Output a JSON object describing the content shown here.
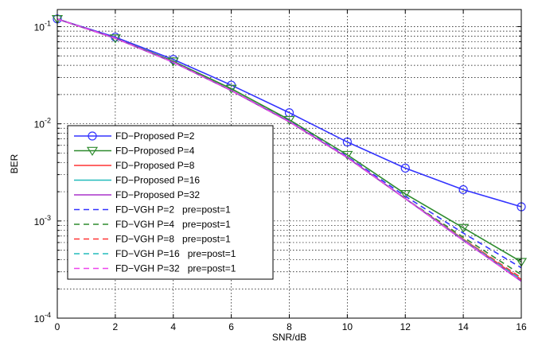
{
  "chart_data": {
    "type": "line",
    "xlabel": "SNR/dB",
    "ylabel": "BER",
    "xlim": [
      0,
      16
    ],
    "ylim": [
      0.0001,
      0.15
    ],
    "yscale": "log",
    "grid": true,
    "legend_position": "bottom-left",
    "x_ticks": [
      "0",
      "2",
      "4",
      "6",
      "8",
      "10",
      "12",
      "14",
      "16"
    ],
    "y_ticks": [
      {
        "value": 0.1,
        "base": "10",
        "exp": "-1"
      },
      {
        "value": 0.01,
        "base": "10",
        "exp": "-2"
      },
      {
        "value": 0.001,
        "base": "10",
        "exp": "-3"
      },
      {
        "value": 0.0001,
        "base": "10",
        "exp": "-4"
      }
    ],
    "x": [
      0,
      2,
      4,
      6,
      8,
      10,
      12,
      14,
      16
    ],
    "series": [
      {
        "name": "FD−Proposed P=2",
        "color": "#3333ff",
        "dash": "solid",
        "marker": "circle",
        "values": [
          0.12,
          0.078,
          0.046,
          0.025,
          0.013,
          0.0065,
          0.0035,
          0.0021,
          0.0014
        ]
      },
      {
        "name": "FD−Proposed P=4",
        "color": "#2e8b2e",
        "dash": "solid",
        "marker": "triangle-down",
        "values": [
          0.12,
          0.076,
          0.044,
          0.023,
          0.011,
          0.0048,
          0.0019,
          0.00085,
          0.00038
        ]
      },
      {
        "name": "FD−Proposed P=8",
        "color": "#ff3333",
        "dash": "solid",
        "marker": "none",
        "values": [
          0.12,
          0.076,
          0.043,
          0.022,
          0.0105,
          0.0045,
          0.0017,
          0.00065,
          0.00025
        ]
      },
      {
        "name": "FD−Proposed P=16",
        "color": "#22bbbb",
        "dash": "solid",
        "marker": "none",
        "values": [
          0.12,
          0.076,
          0.043,
          0.022,
          0.0105,
          0.0045,
          0.0017,
          0.00064,
          0.00024
        ]
      },
      {
        "name": "FD−Proposed P=32",
        "color": "#aa33cc",
        "dash": "solid",
        "marker": "none",
        "values": [
          0.12,
          0.076,
          0.043,
          0.022,
          0.0105,
          0.0045,
          0.0017,
          0.00063,
          0.00024
        ]
      },
      {
        "name": "FD−VGH P=2   pre=post=1",
        "color": "#3333ff",
        "dash": "dashed",
        "marker": "none",
        "values": [
          0.12,
          0.076,
          0.044,
          0.022,
          0.0107,
          0.0046,
          0.0018,
          0.00075,
          0.00033
        ]
      },
      {
        "name": "FD−VGH P=4   pre=post=1",
        "color": "#2e8b2e",
        "dash": "dashed",
        "marker": "none",
        "values": [
          0.12,
          0.076,
          0.044,
          0.022,
          0.0106,
          0.0045,
          0.0017,
          0.00068,
          0.00028
        ]
      },
      {
        "name": "FD−VGH P=8   pre=post=1",
        "color": "#ff3333",
        "dash": "dashed",
        "marker": "none",
        "values": [
          0.12,
          0.076,
          0.043,
          0.022,
          0.0105,
          0.0045,
          0.0017,
          0.00065,
          0.00026
        ]
      },
      {
        "name": "FD−VGH P=16   pre=post=1",
        "color": "#22bbbb",
        "dash": "dashed",
        "marker": "none",
        "values": [
          0.12,
          0.076,
          0.043,
          0.022,
          0.0105,
          0.0045,
          0.0017,
          0.00064,
          0.00025
        ]
      },
      {
        "name": "FD−VGH P=32   pre=post=1",
        "color": "#ee44ee",
        "dash": "dashed",
        "marker": "none",
        "values": [
          0.12,
          0.076,
          0.043,
          0.022,
          0.0105,
          0.0045,
          0.0017,
          0.00063,
          0.00024
        ]
      }
    ]
  }
}
